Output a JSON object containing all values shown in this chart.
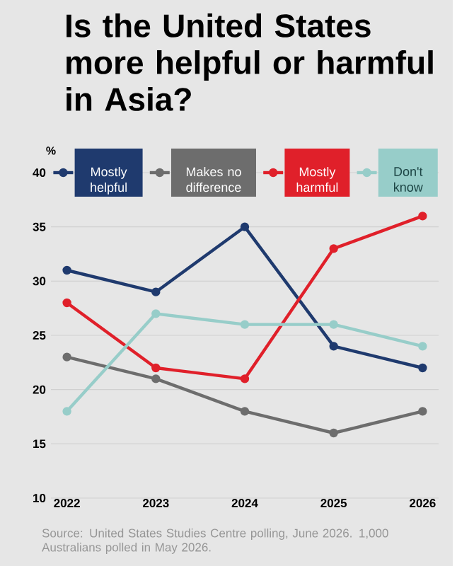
{
  "chart_data": {
    "type": "line",
    "title": "Is the United States more helpful or harmful in Asia?",
    "categories": [
      "2022",
      "2023",
      "2024",
      "2025",
      "2026"
    ],
    "ylabel": "%",
    "ylim": [
      10,
      40
    ],
    "yticks": [
      10,
      15,
      20,
      25,
      30,
      35,
      40
    ],
    "series": [
      {
        "name": "Mostly helpful",
        "color": "#1f3a6e",
        "values": [
          31,
          29,
          35,
          24,
          22
        ]
      },
      {
        "name": "Makes no difference",
        "color": "#6d6d6d",
        "values": [
          23,
          21,
          18,
          16,
          18
        ]
      },
      {
        "name": "Mostly harmful",
        "color": "#e0202a",
        "values": [
          28,
          22,
          21,
          33,
          36
        ]
      },
      {
        "name": "Don't know",
        "color": "#97cdc9",
        "values": [
          18,
          27,
          26,
          26,
          24
        ]
      }
    ],
    "grid": "y",
    "legend": "top",
    "marker": "circle",
    "line_style": "solid",
    "annotations": [
      "Source: United States Studies Centre polling, June 2026. 1,000 Australians polled in May 2026."
    ]
  }
}
